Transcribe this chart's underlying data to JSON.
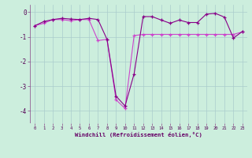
{
  "xlabel": "Windchill (Refroidissement éolien,°C)",
  "x": [
    0,
    1,
    2,
    3,
    4,
    5,
    6,
    7,
    8,
    9,
    10,
    11,
    12,
    13,
    14,
    15,
    16,
    17,
    18,
    19,
    20,
    21,
    22,
    23
  ],
  "line1": [
    -0.55,
    -0.45,
    -0.3,
    -0.3,
    -0.35,
    -0.3,
    -0.3,
    -1.15,
    -1.1,
    -3.55,
    -3.9,
    -0.95,
    -0.9,
    -0.9,
    -0.9,
    -0.9,
    -0.9,
    -0.9,
    -0.9,
    -0.9,
    -0.9,
    -0.9,
    -0.9,
    -0.8
  ],
  "line2": [
    -0.55,
    -0.38,
    -0.3,
    -0.25,
    -0.28,
    -0.3,
    -0.25,
    -0.3,
    -1.1,
    -3.4,
    -3.8,
    -2.5,
    -0.18,
    -0.18,
    -0.32,
    -0.45,
    -0.32,
    -0.42,
    -0.42,
    -0.08,
    -0.05,
    -0.2,
    -1.05,
    -0.78
  ],
  "bg_color": "#cceedd",
  "grid_color": "#aacccc",
  "line_color1": "#cc44cc",
  "line_color2": "#880088",
  "ylim": [
    -4.5,
    0.3
  ],
  "yticks": [
    0,
    -1,
    -2,
    -3,
    -4
  ],
  "xlim": [
    -0.5,
    23.5
  ],
  "text_color": "#550055",
  "xlabel_color": "#660066",
  "axis_color": "#884488"
}
